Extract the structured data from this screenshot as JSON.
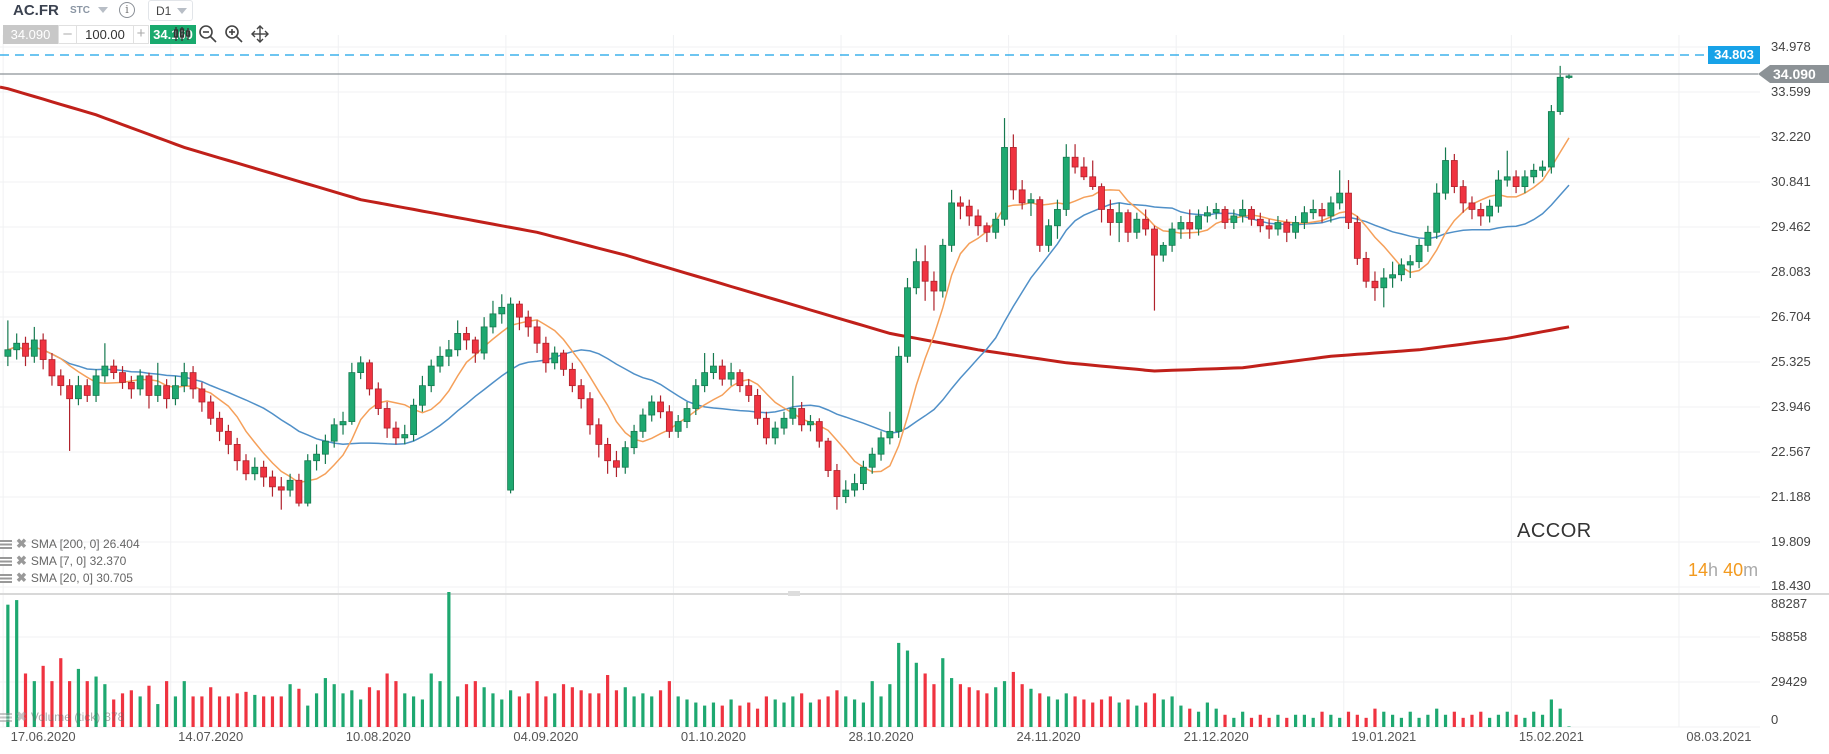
{
  "toolbar": {
    "symbol": "AC.FR",
    "symbol_type": "STC",
    "info_icon": "i",
    "timeframe": "D1",
    "bid": "34.090",
    "minus": "–",
    "quantity": "100.00",
    "plus": "+",
    "ask": "34.160",
    "icons": [
      "candles-icon",
      "zoom-out-icon",
      "zoom-in-icon",
      "move-icon"
    ]
  },
  "chart_labels": {
    "instrument_name": "ACCOR",
    "timer_hours": "14",
    "timer_h_unit": "h",
    "timer_minutes": "40",
    "timer_m_unit": "m",
    "ask_line_label": "34.803",
    "current_price_label": "34.090"
  },
  "indicators": [
    {
      "label": "SMA [200, 0] 26.404",
      "color": "#c0201a"
    },
    {
      "label": "SMA [7, 0] 32.370",
      "color": "#f5a05a"
    },
    {
      "label": "SMA [20, 0] 30.705",
      "color": "#5090c8"
    }
  ],
  "volume_legend": {
    "label": "Volume (tick)",
    "value": "378"
  },
  "colors": {
    "up": "#1ea870",
    "down": "#ef3340",
    "ask_line": "#17a2e8",
    "price_line": "#8c9296",
    "grid": "#f0f1f3"
  },
  "chart_data": {
    "type": "candlestick",
    "price_axis_ticks": [
      "34.978",
      "33.599",
      "32.220",
      "30.841",
      "29.462",
      "28.083",
      "26.704",
      "25.325",
      "23.946",
      "22.567",
      "21.188",
      "19.809",
      "18.430"
    ],
    "ylim": [
      18.43,
      34.978
    ],
    "volume_axis_ticks": [
      "88287",
      "58858",
      "29429",
      "0"
    ],
    "volume_ylim": [
      0,
      88287
    ],
    "x_ticks": [
      {
        "label": "17.06.2020",
        "index": 4
      },
      {
        "label": "14.07.2020",
        "index": 23
      },
      {
        "label": "10.08.2020",
        "index": 42
      },
      {
        "label": "04.09.2020",
        "index": 61
      },
      {
        "label": "01.10.2020",
        "index": 80
      },
      {
        "label": "28.10.2020",
        "index": 99
      },
      {
        "label": "24.11.2020",
        "index": 118
      },
      {
        "label": "21.12.2020",
        "index": 137
      },
      {
        "label": "19.01.2021",
        "index": 156
      },
      {
        "label": "15.02.2021",
        "index": 175
      },
      {
        "label": "08.03.2021",
        "index": 194
      }
    ],
    "ask_price": 34.803,
    "current_price": 34.09,
    "ohlc": [
      [
        25.5,
        26.6,
        25.2,
        25.7
      ],
      [
        25.7,
        26.2,
        25.4,
        25.9
      ],
      [
        25.9,
        26.1,
        25.2,
        25.5
      ],
      [
        25.5,
        26.4,
        25.3,
        26.0
      ],
      [
        26.0,
        26.2,
        25.1,
        25.4
      ],
      [
        25.4,
        25.6,
        24.6,
        24.9
      ],
      [
        24.9,
        25.1,
        24.3,
        24.6
      ],
      [
        24.6,
        24.8,
        22.6,
        24.2
      ],
      [
        24.2,
        24.9,
        24.0,
        24.6
      ],
      [
        24.6,
        24.8,
        24.1,
        24.3
      ],
      [
        24.3,
        25.1,
        24.1,
        24.9
      ],
      [
        24.9,
        25.9,
        24.7,
        25.2
      ],
      [
        25.2,
        25.4,
        24.8,
        25.0
      ],
      [
        25.0,
        25.2,
        24.5,
        24.7
      ],
      [
        24.7,
        24.9,
        24.2,
        24.5
      ],
      [
        24.5,
        25.1,
        24.3,
        24.9
      ],
      [
        24.9,
        25.0,
        23.9,
        24.3
      ],
      [
        24.3,
        25.3,
        24.1,
        24.6
      ],
      [
        24.6,
        24.8,
        23.9,
        24.2
      ],
      [
        24.2,
        24.9,
        24.0,
        24.6
      ],
      [
        24.6,
        25.3,
        24.4,
        25.0
      ],
      [
        25.0,
        25.2,
        24.2,
        24.5
      ],
      [
        24.5,
        24.7,
        23.8,
        24.1
      ],
      [
        24.1,
        24.3,
        23.4,
        23.6
      ],
      [
        23.6,
        23.8,
        22.9,
        23.2
      ],
      [
        23.2,
        23.4,
        22.5,
        22.8
      ],
      [
        22.8,
        23.0,
        22.0,
        22.3
      ],
      [
        22.3,
        22.5,
        21.7,
        21.9
      ],
      [
        21.9,
        22.4,
        21.7,
        22.1
      ],
      [
        22.1,
        22.3,
        21.5,
        21.8
      ],
      [
        21.8,
        22.0,
        21.2,
        21.5
      ],
      [
        21.5,
        21.8,
        20.8,
        21.4
      ],
      [
        21.4,
        21.9,
        21.2,
        21.7
      ],
      [
        21.7,
        21.9,
        20.9,
        21.0
      ],
      [
        21.0,
        22.5,
        20.9,
        22.3
      ],
      [
        22.3,
        22.8,
        22.0,
        22.5
      ],
      [
        22.5,
        23.1,
        22.2,
        22.9
      ],
      [
        22.9,
        23.6,
        22.7,
        23.4
      ],
      [
        23.4,
        23.8,
        23.1,
        23.5
      ],
      [
        23.5,
        25.3,
        23.4,
        25.0
      ],
      [
        25.0,
        25.5,
        24.8,
        25.3
      ],
      [
        25.3,
        25.4,
        24.3,
        24.5
      ],
      [
        24.5,
        24.7,
        23.7,
        23.9
      ],
      [
        23.9,
        24.1,
        23.0,
        23.3
      ],
      [
        23.3,
        23.5,
        22.8,
        23.0
      ],
      [
        23.0,
        23.4,
        22.8,
        23.1
      ],
      [
        23.1,
        24.2,
        22.9,
        24.0
      ],
      [
        24.0,
        24.9,
        23.8,
        24.6
      ],
      [
        24.6,
        25.4,
        24.4,
        25.2
      ],
      [
        25.2,
        25.8,
        25.0,
        25.5
      ],
      [
        25.5,
        26.0,
        25.2,
        25.7
      ],
      [
        25.7,
        26.6,
        25.5,
        26.2
      ],
      [
        26.2,
        26.4,
        25.7,
        26.0
      ],
      [
        26.0,
        26.1,
        25.3,
        25.6
      ],
      [
        25.6,
        26.7,
        25.4,
        26.4
      ],
      [
        26.4,
        27.2,
        26.2,
        26.8
      ],
      [
        26.8,
        27.4,
        26.5,
        27.0
      ],
      [
        21.4,
        27.3,
        21.3,
        27.1
      ],
      [
        27.1,
        27.2,
        26.3,
        26.7
      ],
      [
        26.7,
        26.9,
        26.1,
        26.4
      ],
      [
        26.4,
        26.6,
        25.6,
        25.9
      ],
      [
        25.9,
        26.1,
        25.0,
        25.3
      ],
      [
        25.3,
        25.8,
        25.1,
        25.6
      ],
      [
        25.6,
        25.7,
        24.9,
        25.1
      ],
      [
        25.1,
        25.3,
        24.4,
        24.6
      ],
      [
        24.6,
        24.8,
        23.9,
        24.2
      ],
      [
        24.2,
        24.4,
        23.1,
        23.4
      ],
      [
        23.4,
        23.6,
        22.4,
        22.8
      ],
      [
        22.8,
        23.0,
        21.9,
        22.3
      ],
      [
        22.3,
        22.6,
        21.8,
        22.1
      ],
      [
        22.1,
        22.9,
        21.9,
        22.7
      ],
      [
        22.7,
        23.4,
        22.5,
        23.2
      ],
      [
        23.2,
        23.9,
        23.0,
        23.7
      ],
      [
        23.7,
        24.3,
        23.5,
        24.1
      ],
      [
        24.1,
        24.3,
        23.6,
        23.8
      ],
      [
        23.8,
        24.0,
        23.0,
        23.2
      ],
      [
        23.2,
        23.7,
        23.0,
        23.5
      ],
      [
        23.5,
        24.1,
        23.3,
        23.9
      ],
      [
        23.9,
        24.8,
        23.7,
        24.6
      ],
      [
        24.6,
        25.6,
        24.4,
        25.0
      ],
      [
        25.0,
        25.6,
        24.8,
        25.2
      ],
      [
        25.2,
        25.4,
        24.6,
        24.8
      ],
      [
        24.8,
        25.3,
        24.6,
        25.0
      ],
      [
        25.0,
        25.1,
        24.4,
        24.6
      ],
      [
        24.6,
        24.8,
        24.1,
        24.3
      ],
      [
        24.3,
        24.5,
        23.4,
        23.6
      ],
      [
        23.6,
        23.8,
        22.8,
        23.0
      ],
      [
        23.0,
        23.5,
        22.8,
        23.3
      ],
      [
        23.3,
        23.8,
        23.1,
        23.6
      ],
      [
        23.6,
        24.9,
        23.4,
        23.9
      ],
      [
        23.9,
        24.1,
        23.2,
        23.4
      ],
      [
        23.4,
        23.7,
        23.2,
        23.5
      ],
      [
        23.5,
        23.6,
        22.7,
        22.9
      ],
      [
        22.9,
        23.0,
        21.8,
        22.0
      ],
      [
        22.0,
        22.2,
        20.8,
        21.2
      ],
      [
        21.2,
        21.7,
        21.0,
        21.4
      ],
      [
        21.4,
        21.9,
        21.2,
        21.6
      ],
      [
        21.6,
        22.3,
        21.4,
        22.1
      ],
      [
        22.1,
        22.7,
        21.9,
        22.5
      ],
      [
        22.5,
        23.2,
        22.3,
        23.0
      ],
      [
        23.0,
        23.8,
        22.8,
        23.2
      ],
      [
        23.2,
        25.8,
        23.0,
        25.5
      ],
      [
        25.5,
        27.9,
        25.3,
        27.6
      ],
      [
        27.6,
        28.8,
        27.4,
        28.4
      ],
      [
        28.4,
        28.9,
        27.2,
        27.8
      ],
      [
        27.8,
        28.1,
        26.9,
        27.5
      ],
      [
        27.5,
        29.1,
        27.3,
        28.9
      ],
      [
        28.9,
        30.6,
        28.7,
        30.2
      ],
      [
        30.2,
        30.4,
        29.7,
        30.1
      ],
      [
        30.1,
        30.3,
        29.5,
        29.8
      ],
      [
        29.8,
        30.0,
        29.2,
        29.5
      ],
      [
        29.5,
        29.6,
        29.0,
        29.3
      ],
      [
        29.3,
        29.9,
        29.1,
        29.7
      ],
      [
        29.7,
        32.8,
        29.5,
        31.9
      ],
      [
        31.9,
        32.3,
        30.3,
        30.6
      ],
      [
        30.6,
        30.9,
        30.0,
        30.2
      ],
      [
        30.2,
        30.5,
        29.8,
        30.3
      ],
      [
        30.3,
        30.4,
        28.7,
        28.9
      ],
      [
        28.9,
        29.7,
        28.7,
        29.5
      ],
      [
        29.5,
        30.3,
        29.1,
        30.0
      ],
      [
        30.0,
        32.0,
        29.8,
        31.6
      ],
      [
        31.6,
        32.0,
        31.1,
        31.3
      ],
      [
        31.3,
        31.6,
        30.9,
        31.0
      ],
      [
        31.0,
        31.5,
        30.6,
        30.7
      ],
      [
        30.7,
        30.8,
        29.6,
        30.0
      ],
      [
        30.0,
        30.3,
        29.2,
        29.6
      ],
      [
        29.6,
        30.2,
        29.0,
        29.9
      ],
      [
        29.9,
        30.0,
        29.0,
        29.3
      ],
      [
        29.3,
        29.9,
        29.1,
        29.7
      ],
      [
        29.7,
        30.0,
        29.2,
        29.4
      ],
      [
        29.4,
        29.5,
        26.9,
        28.6
      ],
      [
        28.6,
        29.0,
        28.4,
        28.9
      ],
      [
        28.9,
        29.6,
        28.7,
        29.4
      ],
      [
        29.4,
        29.8,
        29.1,
        29.6
      ],
      [
        29.6,
        30.0,
        29.1,
        29.4
      ],
      [
        29.4,
        30.0,
        29.2,
        29.8
      ],
      [
        29.8,
        30.1,
        29.6,
        29.9
      ],
      [
        29.9,
        30.2,
        29.7,
        30.0
      ],
      [
        30.0,
        30.1,
        29.4,
        29.6
      ],
      [
        29.6,
        30.0,
        29.4,
        29.8
      ],
      [
        29.8,
        30.3,
        29.6,
        30.0
      ],
      [
        30.0,
        30.1,
        29.5,
        29.7
      ],
      [
        29.7,
        29.9,
        29.3,
        29.5
      ],
      [
        29.5,
        29.7,
        29.1,
        29.4
      ],
      [
        29.4,
        29.8,
        29.2,
        29.6
      ],
      [
        29.6,
        29.7,
        29.0,
        29.3
      ],
      [
        29.3,
        29.8,
        29.1,
        29.6
      ],
      [
        29.6,
        30.1,
        29.4,
        29.9
      ],
      [
        29.9,
        30.3,
        29.7,
        30.0
      ],
      [
        30.0,
        30.2,
        29.6,
        29.8
      ],
      [
        29.8,
        30.4,
        29.6,
        30.2
      ],
      [
        30.2,
        31.2,
        30.0,
        30.5
      ],
      [
        30.5,
        30.9,
        29.4,
        29.6
      ],
      [
        29.6,
        29.8,
        28.3,
        28.5
      ],
      [
        28.5,
        28.7,
        27.6,
        27.8
      ],
      [
        27.8,
        28.1,
        27.2,
        27.6
      ],
      [
        27.6,
        28.2,
        27.0,
        27.9
      ],
      [
        27.9,
        28.4,
        27.6,
        28.0
      ],
      [
        28.0,
        28.5,
        27.8,
        28.3
      ],
      [
        28.3,
        28.6,
        27.9,
        28.4
      ],
      [
        28.4,
        29.1,
        28.2,
        28.9
      ],
      [
        28.9,
        29.5,
        28.7,
        29.3
      ],
      [
        29.3,
        30.8,
        29.1,
        30.5
      ],
      [
        30.5,
        31.9,
        30.3,
        31.5
      ],
      [
        31.5,
        31.7,
        30.5,
        30.7
      ],
      [
        30.7,
        30.9,
        29.9,
        30.2
      ],
      [
        30.2,
        30.4,
        29.7,
        30.0
      ],
      [
        30.0,
        30.2,
        29.5,
        29.8
      ],
      [
        29.8,
        30.3,
        29.6,
        30.1
      ],
      [
        30.1,
        31.2,
        29.9,
        30.9
      ],
      [
        30.9,
        31.8,
        30.7,
        31.0
      ],
      [
        31.0,
        31.2,
        30.5,
        30.7
      ],
      [
        30.7,
        31.2,
        30.5,
        31.0
      ],
      [
        31.0,
        31.4,
        30.8,
        31.2
      ],
      [
        31.2,
        31.5,
        31.0,
        31.3
      ],
      [
        31.3,
        33.2,
        31.1,
        33.0
      ],
      [
        33.0,
        34.4,
        32.9,
        34.05
      ],
      [
        34.05,
        34.15,
        34.0,
        34.09
      ]
    ],
    "volume": [
      80000,
      83000,
      35000,
      30000,
      40000,
      30000,
      45000,
      30000,
      38000,
      30000,
      33000,
      28000,
      18000,
      22000,
      24000,
      20000,
      27000,
      15000,
      30000,
      20000,
      30000,
      20000,
      20000,
      26000,
      20000,
      20000,
      22000,
      23000,
      21000,
      20000,
      20000,
      20000,
      28000,
      25000,
      14000,
      22000,
      32000,
      28000,
      22000,
      24000,
      18000,
      26000,
      24000,
      35000,
      30000,
      22000,
      20000,
      18000,
      35000,
      30000,
      88287,
      20000,
      28000,
      30000,
      26000,
      22000,
      18000,
      24000,
      20000,
      22000,
      30000,
      20000,
      22000,
      28000,
      26000,
      24000,
      22000,
      22000,
      34000,
      24000,
      26000,
      20000,
      22000,
      20000,
      24000,
      30000,
      20000,
      18000,
      16000,
      14000,
      16000,
      14000,
      18000,
      14000,
      16000,
      12000,
      20000,
      18000,
      16000,
      20000,
      22000,
      16000,
      18000,
      20000,
      24000,
      20000,
      18000,
      16000,
      30000,
      20000,
      28000,
      55000,
      50000,
      42000,
      35000,
      28000,
      45000,
      32000,
      28000,
      26000,
      24000,
      22000,
      26000,
      30000,
      36000,
      28000,
      25000,
      22000,
      20000,
      18000,
      22000,
      20000,
      18000,
      16000,
      18000,
      20000,
      16000,
      18000,
      14000,
      16000,
      22000,
      18000,
      20000,
      14000,
      12000,
      10000,
      16000,
      12000,
      8000,
      6000,
      10000,
      6000,
      8000,
      6000,
      8000,
      6000,
      8000,
      8000,
      6000,
      10000,
      8000,
      6000,
      10000,
      8000,
      6000,
      12000,
      10000,
      8000,
      6000,
      10000,
      6000,
      8000,
      12000,
      8000,
      10000,
      6000,
      8000,
      10000,
      6000,
      8000,
      10000,
      8000,
      6000,
      10000,
      8000,
      18000,
      12000,
      378
    ],
    "sma200_samples": [
      {
        "index": 0,
        "value": 33.7
      },
      {
        "index": 10,
        "value": 32.9
      },
      {
        "index": 20,
        "value": 31.9
      },
      {
        "index": 30,
        "value": 31.1
      },
      {
        "index": 40,
        "value": 30.3
      },
      {
        "index": 50,
        "value": 29.8
      },
      {
        "index": 60,
        "value": 29.3
      },
      {
        "index": 70,
        "value": 28.6
      },
      {
        "index": 80,
        "value": 27.8
      },
      {
        "index": 90,
        "value": 27.0
      },
      {
        "index": 100,
        "value": 26.2
      },
      {
        "index": 110,
        "value": 25.7
      },
      {
        "index": 120,
        "value": 25.3
      },
      {
        "index": 130,
        "value": 25.05
      },
      {
        "index": 140,
        "value": 25.15
      },
      {
        "index": 150,
        "value": 25.5
      },
      {
        "index": 160,
        "value": 25.7
      },
      {
        "index": 170,
        "value": 26.05
      },
      {
        "index": 177,
        "value": 26.404
      }
    ]
  }
}
